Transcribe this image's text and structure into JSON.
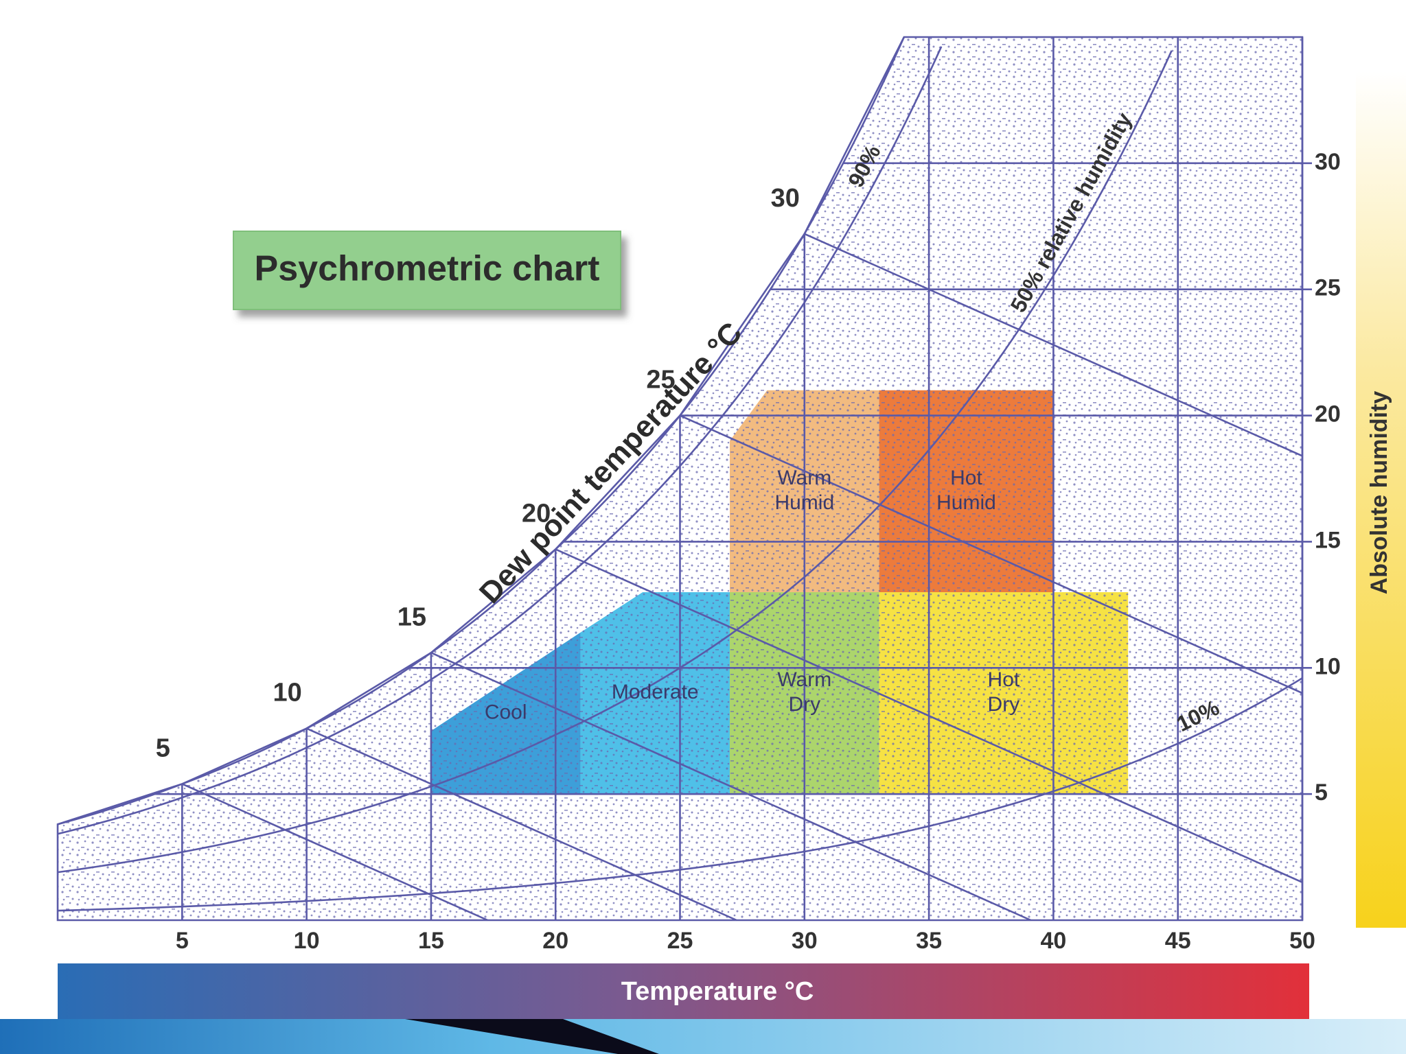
{
  "chart_data": {
    "type": "psychrometric",
    "title": "Psychrometric chart",
    "x_label": "Temperature °C",
    "y_label": "Absolute humidity",
    "curve_label": "Dew point temperature °C",
    "xlim": [
      0,
      50
    ],
    "ylim": [
      0,
      35
    ],
    "xticks": [
      5,
      10,
      15,
      20,
      25,
      30,
      35,
      40,
      45,
      50
    ],
    "yticks": [
      5,
      10,
      15,
      20,
      25,
      30
    ],
    "saturation": {
      "x": [
        0,
        5,
        10,
        15,
        20,
        25,
        30,
        34
      ],
      "values": [
        3.8,
        5.4,
        7.6,
        10.6,
        14.7,
        20,
        27.2,
        35
      ]
    },
    "dew_point_labels": [
      5,
      10,
      15,
      20,
      25,
      30
    ],
    "rh_lines": [
      {
        "value": 90,
        "label": "90%"
      },
      {
        "value": 50,
        "label": "50% relative humidity"
      },
      {
        "value": 10,
        "label": "10%"
      }
    ],
    "zones": [
      {
        "label": [
          "Cool"
        ],
        "color": "#3d9fd9",
        "x": [
          15,
          15,
          21,
          21
        ],
        "y": [
          5,
          7.5,
          11.4,
          5
        ]
      },
      {
        "label": [
          "Moderate"
        ],
        "color": "#4fc0e8",
        "x": [
          21,
          21,
          23.5,
          27,
          27
        ],
        "y": [
          5,
          11.4,
          13,
          13,
          5
        ]
      },
      {
        "label": [
          "Warm",
          "Humid"
        ],
        "color": "#f2bb80",
        "x": [
          27,
          27,
          28.5,
          33,
          33
        ],
        "y": [
          13,
          19,
          21,
          21,
          13
        ]
      },
      {
        "label": [
          "Hot",
          "Humid"
        ],
        "color": "#ec7b3c",
        "x": [
          33,
          33,
          40,
          40
        ],
        "y": [
          13,
          21,
          21,
          13
        ]
      },
      {
        "label": [
          "Warm",
          "Dry"
        ],
        "color": "#acd56c",
        "x": [
          27,
          27,
          33,
          33
        ],
        "y": [
          5,
          13,
          13,
          5
        ]
      },
      {
        "label": [
          "Hot",
          "Dry"
        ],
        "color": "#f6e244",
        "x": [
          33,
          33,
          43,
          43
        ],
        "y": [
          5,
          13,
          13,
          5
        ]
      }
    ]
  }
}
